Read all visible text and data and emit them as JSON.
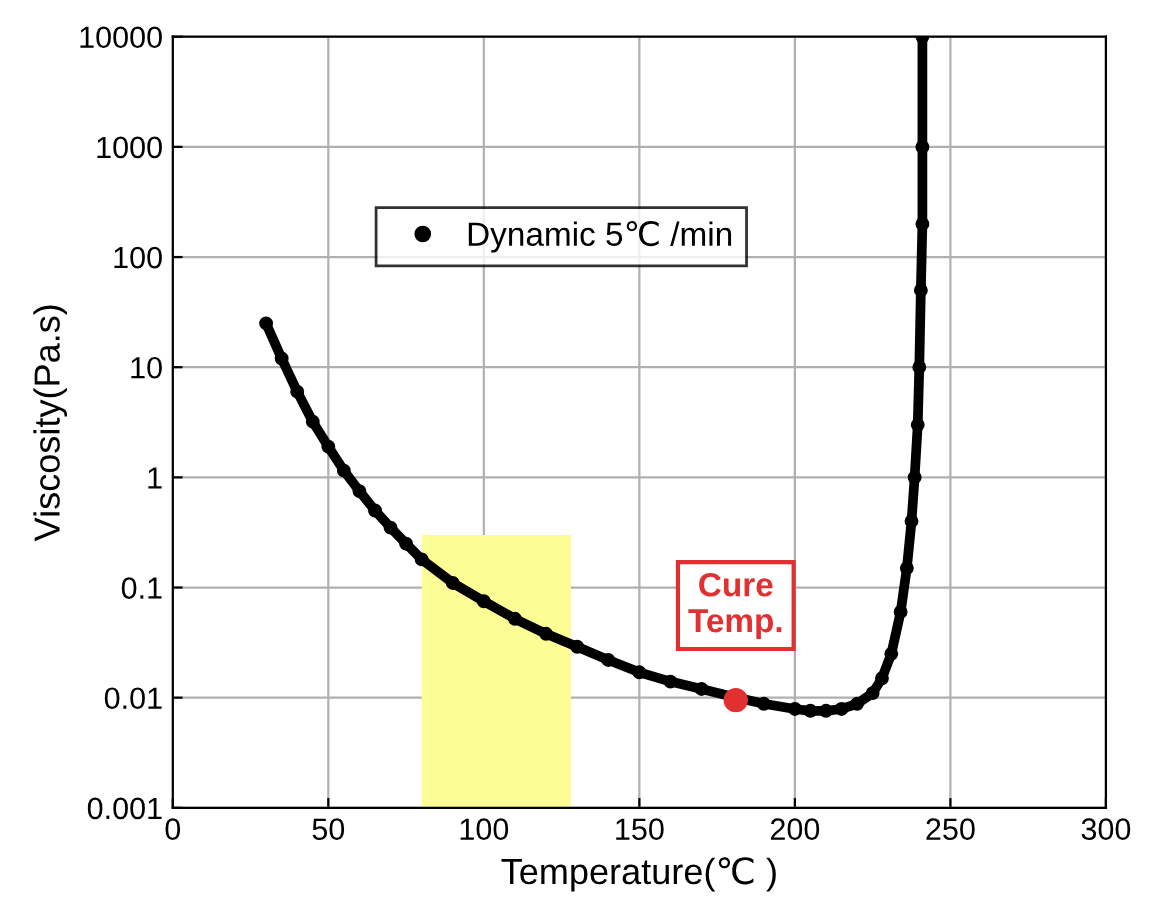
{
  "chart_data": {
    "type": "line",
    "xlabel": "Temperature(℃ )",
    "ylabel": "Viscosity(Pa.s)",
    "log": "y",
    "xlim": [
      0,
      300
    ],
    "xticks": [
      0,
      50,
      100,
      150,
      200,
      250,
      300
    ],
    "ylim": [
      0.001,
      10000
    ],
    "yticks": [
      0.001,
      0.01,
      0.1,
      1,
      10,
      100,
      1000,
      10000
    ],
    "grid": true,
    "legend": "top left",
    "line_style": "solid",
    "series": [
      {
        "type": "area",
        "color": "#fdfd96",
        "x": [
          80,
          128
        ],
        "values": [
          0.3,
          0.3
        ]
      },
      {
        "name": "Dynamic 5℃ /min",
        "color": "#000000",
        "marker": "circle",
        "x": [
          30,
          35,
          40,
          45,
          50,
          55,
          60,
          65,
          70,
          75,
          80,
          90,
          100,
          110,
          120,
          130,
          140,
          150,
          160,
          170,
          180,
          190,
          200,
          205,
          210,
          215,
          220,
          225,
          228,
          231,
          234,
          236,
          237.5,
          238.5,
          239.5,
          240,
          240.5,
          241,
          241,
          241
        ],
        "values": [
          25,
          12,
          6,
          3.2,
          1.9,
          1.15,
          0.75,
          0.5,
          0.35,
          0.25,
          0.18,
          0.11,
          0.075,
          0.052,
          0.038,
          0.029,
          0.022,
          0.017,
          0.014,
          0.012,
          0.0102,
          0.0088,
          0.0079,
          0.0076,
          0.0076,
          0.0079,
          0.0088,
          0.011,
          0.015,
          0.025,
          0.06,
          0.15,
          0.4,
          1,
          3,
          10,
          50,
          200,
          1000,
          10000
        ]
      },
      {
        "type": "scatter",
        "color": "#e03030",
        "x": [
          181
        ],
        "values": [
          0.0095
        ]
      }
    ],
    "annotations": [
      {
        "text": "Cure\nTemp.",
        "x": 181,
        "y": 0.0095
      }
    ]
  }
}
